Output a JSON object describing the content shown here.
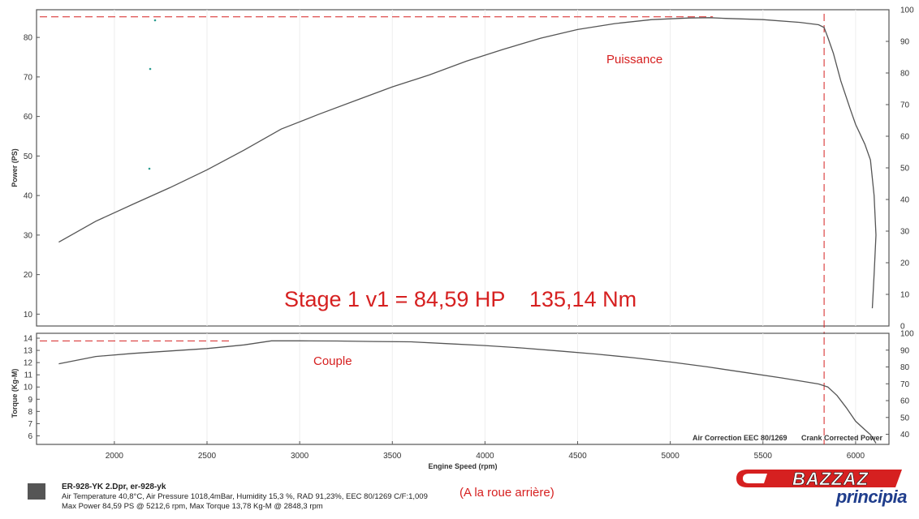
{
  "chart_data": [
    {
      "type": "line",
      "ylabel": "Power (PS)",
      "y_ticks": [
        10,
        20,
        30,
        40,
        50,
        60,
        70,
        80
      ],
      "ylim": [
        7,
        87
      ],
      "y2_ticks": [
        0,
        10,
        20,
        30,
        40,
        50,
        60,
        70,
        80,
        90,
        100
      ],
      "y2lim": [
        0,
        100
      ],
      "xlim": [
        1580,
        6180
      ],
      "annotations": [
        "Puissance",
        "Stage 1 v1 = 84,59 HP",
        "135,14 Nm"
      ],
      "max_line_value": 85.2,
      "vertical_marker_x": 5830,
      "series": [
        {
          "name": "Puissance",
          "color": "#555555",
          "x": [
            1700,
            1900,
            2100,
            2300,
            2500,
            2700,
            2900,
            3100,
            3300,
            3500,
            3700,
            3900,
            4100,
            4300,
            4500,
            4700,
            4900,
            5100,
            5212,
            5300,
            5500,
            5700,
            5800,
            5830,
            5850,
            5880,
            5920,
            5970,
            6000,
            6050,
            6080,
            6100,
            6110,
            6100,
            6090
          ],
          "y": [
            28.2,
            33.5,
            37.8,
            42,
            46.5,
            51.5,
            56.8,
            60.5,
            64,
            67.5,
            70.5,
            74,
            77,
            79.8,
            82,
            83.5,
            84.5,
            84.9,
            85,
            84.8,
            84.5,
            83.8,
            83.2,
            82.5,
            80,
            76,
            69,
            62,
            58,
            53,
            49,
            40,
            30,
            20,
            11.5
          ]
        }
      ]
    },
    {
      "type": "line",
      "ylabel": "Torque (Kg-M)",
      "xlabel": "Engine Speed (rpm)",
      "x_ticks": [
        2000,
        2500,
        3000,
        3500,
        4000,
        4500,
        5000,
        5500,
        6000
      ],
      "xlim": [
        1580,
        6180
      ],
      "y_ticks": [
        6,
        7,
        8,
        9,
        10,
        11,
        12,
        13,
        14
      ],
      "ylim": [
        5.3,
        14.4
      ],
      "y2_ticks": [
        40,
        50,
        60,
        70,
        80,
        90,
        100
      ],
      "y2lim": [
        34,
        100
      ],
      "annotations": [
        "Couple",
        "Air Correction EEC 80/1269",
        "Crank Corrected Power"
      ],
      "max_line_value": 13.78,
      "vertical_marker_x": 5830,
      "series": [
        {
          "name": "Couple",
          "color": "#555555",
          "x": [
            1700,
            1900,
            2100,
            2300,
            2500,
            2700,
            2848,
            3000,
            3200,
            3400,
            3600,
            3800,
            4000,
            4200,
            4400,
            4600,
            4800,
            5000,
            5200,
            5400,
            5600,
            5800,
            5850,
            5900,
            5950,
            6000,
            6050,
            6080,
            6110
          ],
          "y": [
            11.9,
            12.5,
            12.75,
            12.95,
            13.15,
            13.45,
            13.78,
            13.78,
            13.77,
            13.73,
            13.7,
            13.55,
            13.4,
            13.2,
            12.95,
            12.7,
            12.4,
            12.05,
            11.65,
            11.2,
            10.75,
            10.25,
            10,
            9.3,
            8.3,
            7.2,
            6.5,
            6.1,
            5.4
          ]
        }
      ]
    }
  ],
  "footer": {
    "line1": "ER-928-YK 2.Dpr,   er-928-yk",
    "line2": "Air Temperature 40,8°C, Air Pressure 1018,4mBar, Humidity 15,3 %, RAD 91,23%,    EEC 80/1269  C/F:1,009",
    "line3": "Max Power 84,59 PS @ 5212,6 rpm, Max Torque 13,78 Kg-M @ 2848,3 rpm",
    "roue": "(A la roue arrière)"
  },
  "logo": {
    "brand": "BAZZAZ",
    "sub": "principia",
    "brand_color": "#d62020",
    "sub_color": "#1f3d8c"
  },
  "colors": {
    "curve": "#555555",
    "annotation": "#d62020",
    "reference_line": "#d62020"
  }
}
